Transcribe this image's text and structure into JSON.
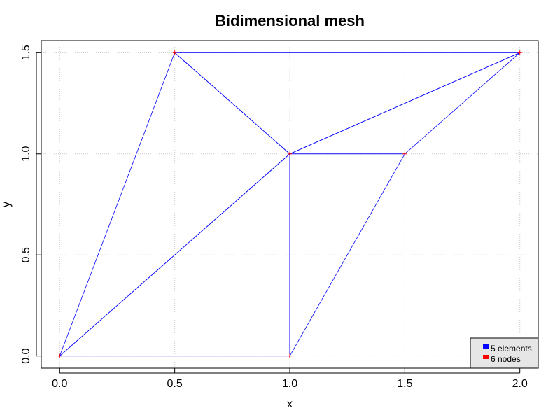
{
  "chart_data": {
    "type": "mesh",
    "title": "Bidimensional mesh",
    "xlabel": "x",
    "ylabel": "y",
    "xlim": [
      -0.08,
      2.08
    ],
    "ylim": [
      -0.06,
      1.56
    ],
    "x_ticks": [
      "0.0",
      "0.5",
      "1.0",
      "1.5",
      "2.0"
    ],
    "y_ticks": [
      "0.0",
      "0.5",
      "1.0",
      "1.5"
    ],
    "grid": true,
    "legend_position": "bottom-right",
    "colors": {
      "elements": "#0000ff",
      "nodes": "#ff0000",
      "grid": "#cccccc",
      "legend_bg": "#e6e6e6"
    },
    "nodes": [
      {
        "x": 0.0,
        "y": 0.0
      },
      {
        "x": 1.0,
        "y": 0.0
      },
      {
        "x": 0.5,
        "y": 1.5
      },
      {
        "x": 1.0,
        "y": 1.0
      },
      {
        "x": 1.5,
        "y": 1.0
      },
      {
        "x": 2.0,
        "y": 1.5
      }
    ],
    "elements": [
      [
        0,
        1,
        3
      ],
      [
        0,
        3,
        2
      ],
      [
        2,
        3,
        5
      ],
      [
        3,
        4,
        5
      ],
      [
        1,
        4,
        3
      ]
    ],
    "legend": [
      {
        "label": "5 elements",
        "color": "#0000ff"
      },
      {
        "label": "6 nodes",
        "color": "#ff0000"
      }
    ]
  }
}
